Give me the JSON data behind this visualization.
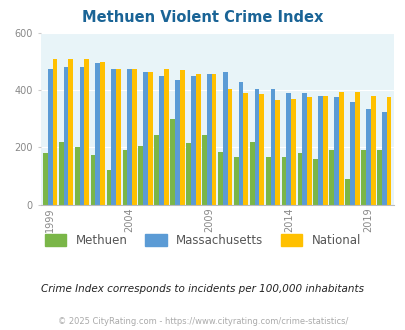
{
  "title": "Methuen Violent Crime Index",
  "years": [
    1999,
    2000,
    2001,
    2002,
    2003,
    2004,
    2005,
    2006,
    2007,
    2008,
    2009,
    2010,
    2011,
    2012,
    2013,
    2014,
    2015,
    2016,
    2017,
    2018,
    2019,
    2020
  ],
  "methuen": [
    180,
    220,
    200,
    175,
    120,
    190,
    205,
    245,
    300,
    215,
    245,
    185,
    165,
    220,
    165,
    165,
    180,
    160,
    190,
    90,
    190,
    190
  ],
  "massachusetts": [
    475,
    480,
    480,
    495,
    475,
    475,
    465,
    450,
    435,
    450,
    455,
    465,
    430,
    405,
    405,
    390,
    390,
    380,
    375,
    360,
    335,
    325
  ],
  "national": [
    510,
    510,
    510,
    500,
    475,
    475,
    465,
    475,
    470,
    455,
    455,
    405,
    390,
    385,
    365,
    370,
    375,
    380,
    395,
    395,
    380,
    375
  ],
  "methuen_color": "#7ab648",
  "mass_color": "#5b9bd5",
  "national_color": "#ffc000",
  "bg_color": "#e8f4f8",
  "ylabel_max": 600,
  "yticks": [
    0,
    200,
    400,
    600
  ],
  "footnote1": "Crime Index corresponds to incidents per 100,000 inhabitants",
  "footnote2": "© 2025 CityRating.com - https://www.cityrating.com/crime-statistics/",
  "title_color": "#1a6496",
  "footnote1_color": "#222222",
  "footnote2_color": "#aaaaaa",
  "tick_color": "#888888",
  "legend_text_color": "#555555"
}
